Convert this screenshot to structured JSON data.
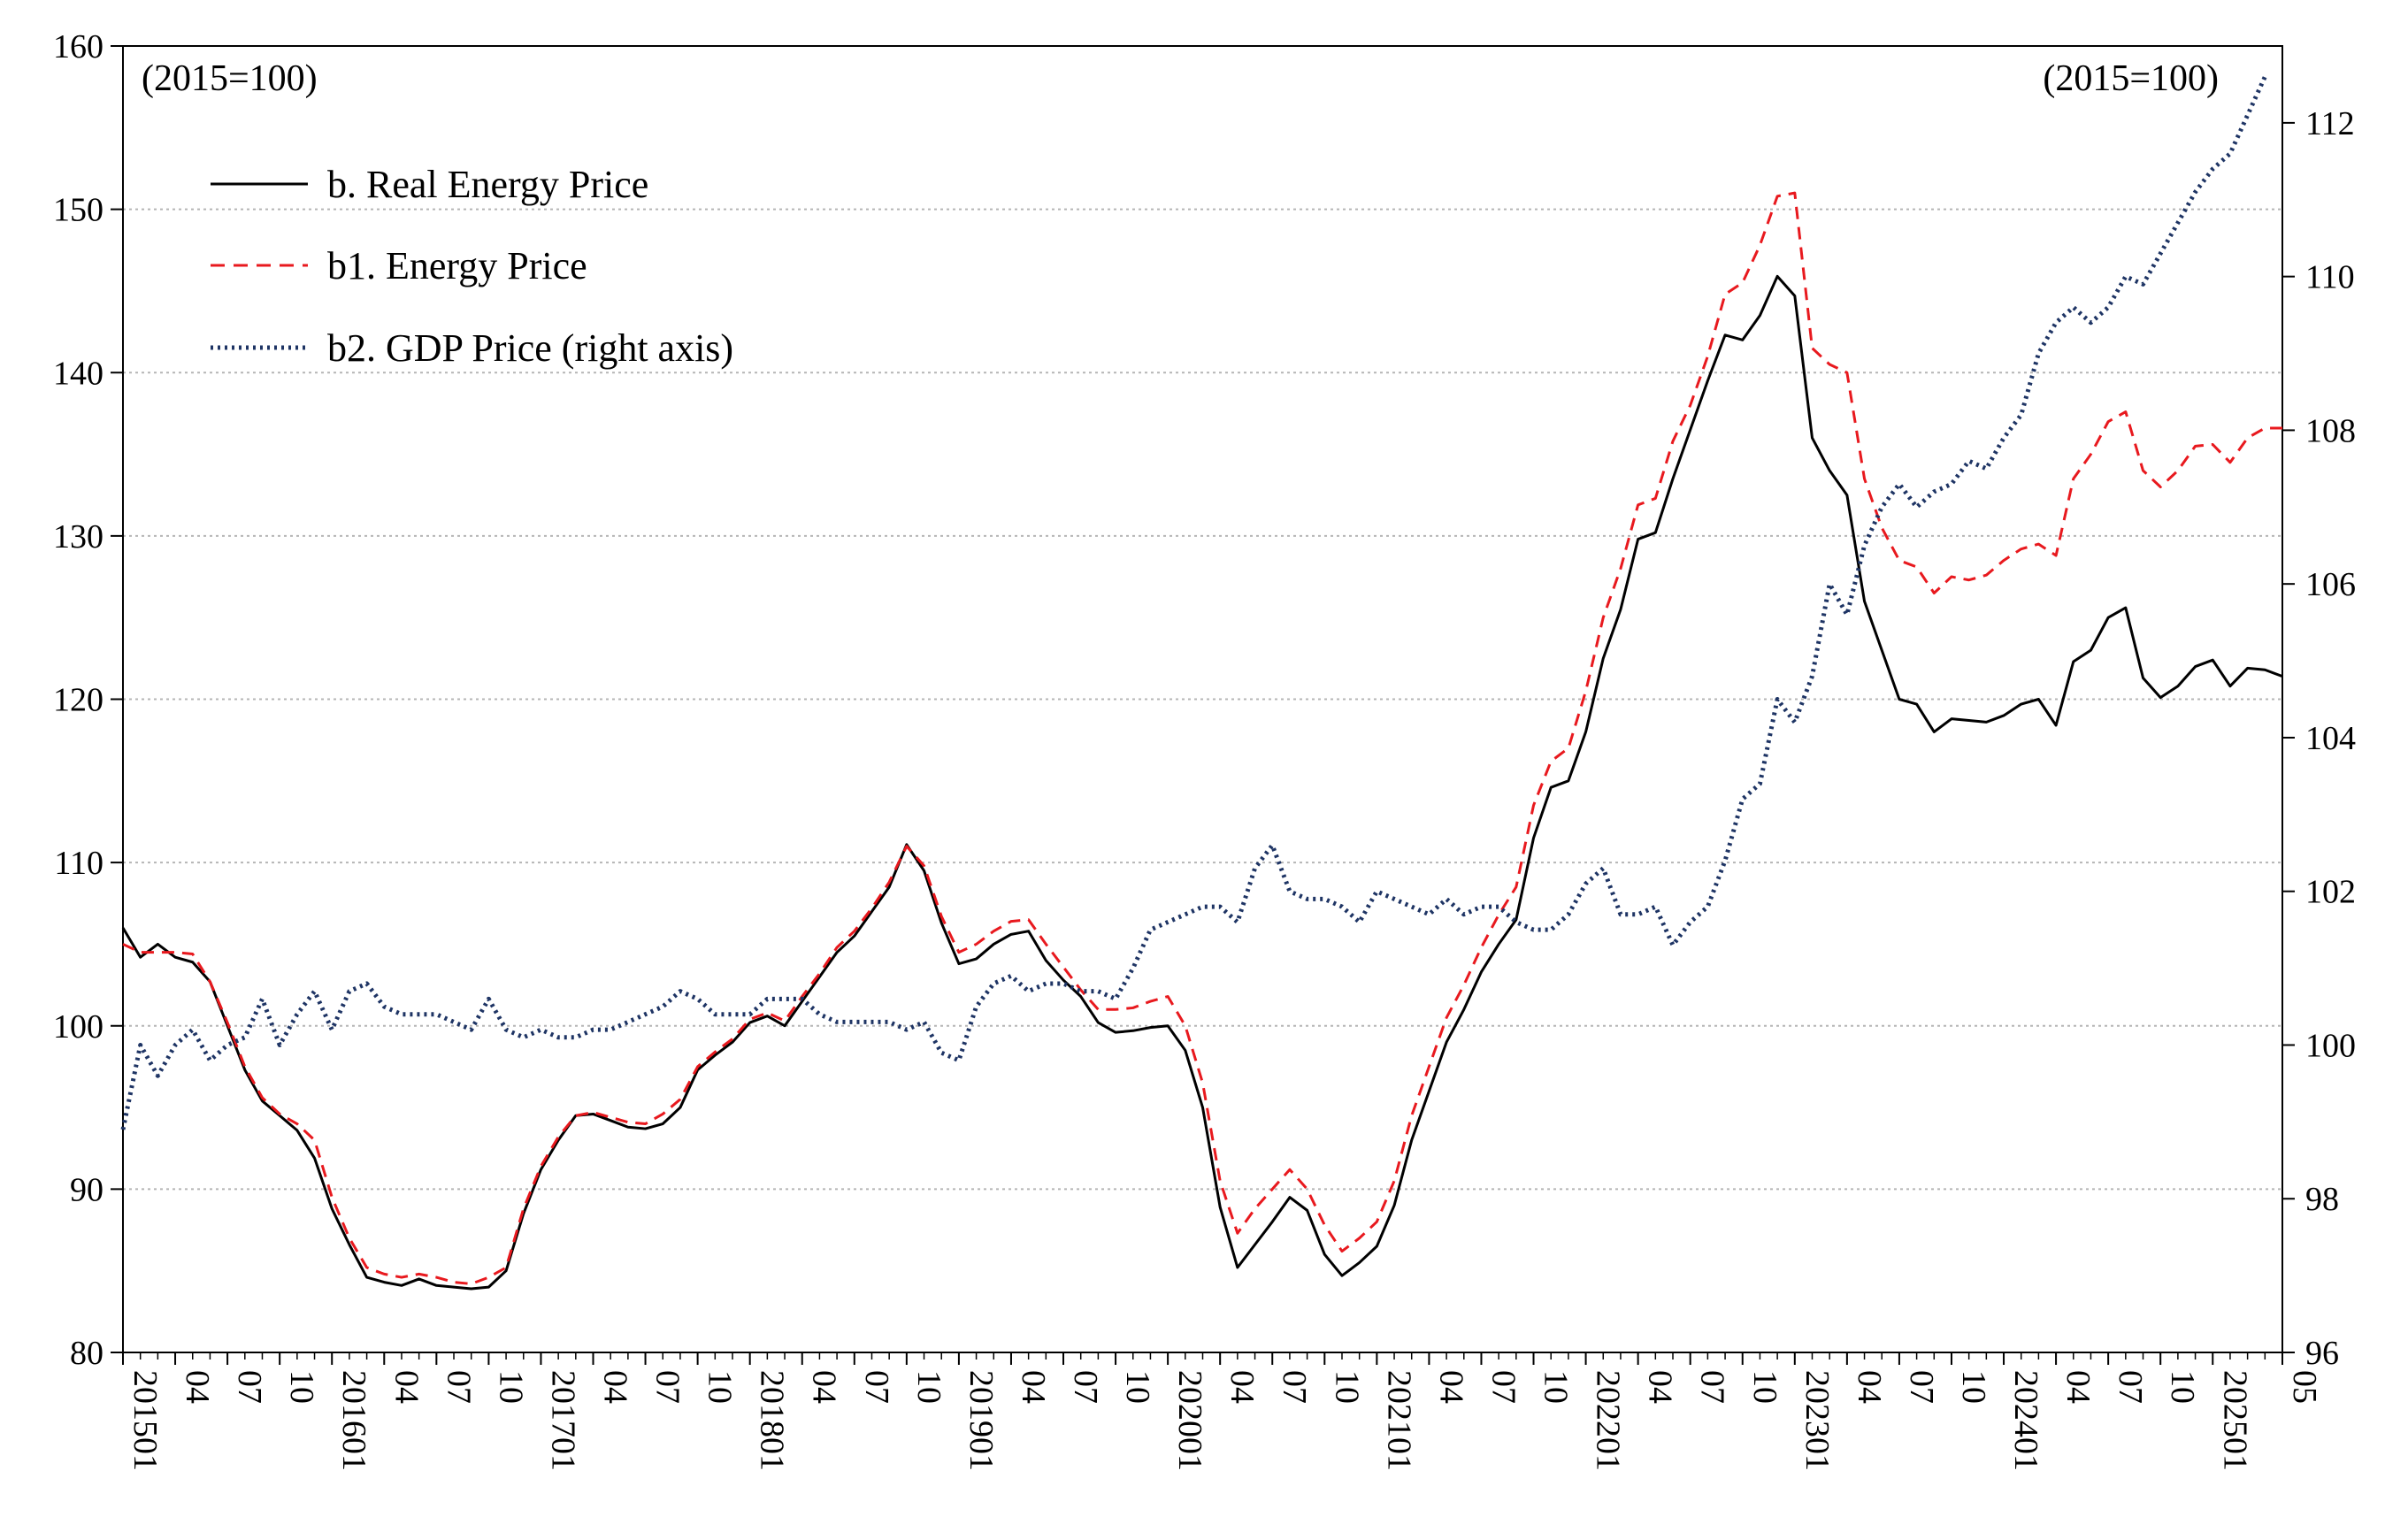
{
  "chart_data": {
    "type": "line",
    "title": "",
    "left_unit_label": "(2015=100)",
    "right_unit_label": "(2015=100)",
    "ylim_left": [
      80,
      160
    ],
    "yticks_left": [
      80,
      90,
      100,
      110,
      120,
      130,
      140,
      150,
      160
    ],
    "ylim_right": [
      96,
      113
    ],
    "yticks_right": [
      96,
      98,
      100,
      102,
      104,
      106,
      108,
      110,
      112
    ],
    "x_start": "2015-01",
    "x_end": "2025-05",
    "x_tick_labels": [
      {
        "i": 0,
        "label": "201501"
      },
      {
        "i": 3,
        "label": "04"
      },
      {
        "i": 6,
        "label": "07"
      },
      {
        "i": 9,
        "label": "10"
      },
      {
        "i": 12,
        "label": "201601"
      },
      {
        "i": 15,
        "label": "04"
      },
      {
        "i": 18,
        "label": "07"
      },
      {
        "i": 21,
        "label": "10"
      },
      {
        "i": 24,
        "label": "201701"
      },
      {
        "i": 27,
        "label": "04"
      },
      {
        "i": 30,
        "label": "07"
      },
      {
        "i": 33,
        "label": "10"
      },
      {
        "i": 36,
        "label": "201801"
      },
      {
        "i": 39,
        "label": "04"
      },
      {
        "i": 42,
        "label": "07"
      },
      {
        "i": 45,
        "label": "10"
      },
      {
        "i": 48,
        "label": "201901"
      },
      {
        "i": 51,
        "label": "04"
      },
      {
        "i": 54,
        "label": "07"
      },
      {
        "i": 57,
        "label": "10"
      },
      {
        "i": 60,
        "label": "202001"
      },
      {
        "i": 63,
        "label": "04"
      },
      {
        "i": 66,
        "label": "07"
      },
      {
        "i": 69,
        "label": "10"
      },
      {
        "i": 72,
        "label": "202101"
      },
      {
        "i": 75,
        "label": "04"
      },
      {
        "i": 78,
        "label": "07"
      },
      {
        "i": 81,
        "label": "10"
      },
      {
        "i": 84,
        "label": "202201"
      },
      {
        "i": 87,
        "label": "04"
      },
      {
        "i": 90,
        "label": "07"
      },
      {
        "i": 93,
        "label": "10"
      },
      {
        "i": 96,
        "label": "202301"
      },
      {
        "i": 99,
        "label": "04"
      },
      {
        "i": 102,
        "label": "07"
      },
      {
        "i": 105,
        "label": "10"
      },
      {
        "i": 108,
        "label": "202401"
      },
      {
        "i": 111,
        "label": "04"
      },
      {
        "i": 114,
        "label": "07"
      },
      {
        "i": 117,
        "label": "10"
      },
      {
        "i": 120,
        "label": "202501"
      },
      {
        "i": 124,
        "label": "05"
      }
    ],
    "grid": true,
    "legend_position": "top-left",
    "series": [
      {
        "name": "b. Real Energy Price",
        "axis": "left",
        "color": "#000000",
        "style": "solid",
        "values": [
          106.0,
          104.2,
          105.0,
          104.2,
          103.9,
          102.7,
          100.0,
          97.3,
          95.4,
          94.5,
          93.6,
          91.9,
          88.8,
          86.6,
          84.6,
          84.3,
          84.1,
          84.5,
          84.1,
          84.0,
          83.9,
          84.0,
          85.0,
          88.5,
          91.2,
          93.0,
          94.5,
          94.6,
          94.2,
          93.8,
          93.7,
          94.0,
          95.0,
          97.3,
          98.2,
          99.0,
          100.2,
          100.6,
          100.0,
          101.5,
          103.0,
          104.5,
          105.5,
          107.0,
          108.5,
          111.1,
          109.5,
          106.3,
          103.8,
          104.1,
          105.0,
          105.6,
          105.8,
          104.0,
          102.8,
          101.8,
          100.2,
          99.6,
          99.7,
          99.9,
          100.0,
          98.5,
          95.0,
          88.9,
          85.2,
          86.6,
          88.0,
          89.5,
          88.7,
          86.0,
          84.7,
          85.5,
          86.5,
          89.0,
          93.0,
          96.0,
          99.0,
          101.0,
          103.3,
          105.0,
          106.5,
          111.5,
          114.6,
          115.0,
          118.0,
          122.5,
          125.5,
          129.8,
          130.2,
          133.5,
          136.5,
          139.5,
          142.3,
          142.0,
          143.5,
          145.9,
          144.7,
          136.0,
          134.0,
          132.5,
          126.0,
          123.0,
          120.0,
          119.7,
          118.0,
          118.8,
          118.7,
          118.6,
          119.0,
          119.7,
          120.0,
          118.4,
          122.3,
          123.0,
          125.0,
          125.6,
          121.3,
          120.1,
          120.8,
          122.0,
          122.4,
          120.8,
          121.9,
          121.8,
          121.4
        ]
      },
      {
        "name": "b1. Energy Price",
        "axis": "left",
        "color": "#e8191e",
        "style": "dashed",
        "values": [
          105.0,
          104.5,
          104.5,
          104.5,
          104.4,
          102.7,
          100.2,
          97.5,
          95.6,
          94.6,
          94.0,
          93.0,
          89.5,
          87.0,
          85.2,
          84.8,
          84.6,
          84.8,
          84.6,
          84.3,
          84.2,
          84.6,
          85.2,
          88.8,
          91.4,
          93.2,
          94.5,
          94.7,
          94.4,
          94.1,
          94.0,
          94.6,
          95.5,
          97.5,
          98.4,
          99.2,
          100.4,
          100.8,
          100.3,
          101.8,
          103.2,
          104.8,
          105.8,
          107.2,
          108.8,
          111.0,
          109.8,
          106.7,
          104.5,
          105.0,
          105.8,
          106.4,
          106.5,
          105.0,
          103.6,
          102.2,
          101.0,
          101.0,
          101.1,
          101.5,
          101.8,
          100.0,
          96.5,
          90.5,
          87.3,
          88.8,
          90.0,
          91.2,
          90.0,
          87.8,
          86.2,
          87.0,
          88.0,
          90.5,
          94.5,
          97.5,
          100.5,
          102.5,
          104.8,
          106.8,
          108.5,
          113.5,
          116.2,
          117.0,
          120.5,
          125.0,
          128.0,
          131.9,
          132.3,
          135.8,
          138.0,
          141.0,
          144.8,
          145.5,
          147.8,
          150.8,
          151.0,
          141.5,
          140.5,
          140.0,
          133.5,
          130.5,
          128.5,
          128.1,
          126.5,
          127.5,
          127.3,
          127.6,
          128.5,
          129.2,
          129.5,
          128.8,
          133.5,
          135.0,
          137.0,
          137.6,
          134.0,
          133.0,
          134.0,
          135.5,
          135.6,
          134.5,
          136.0,
          136.6,
          136.6
        ]
      },
      {
        "name": "b2. GDP Price (right axis)",
        "axis": "right",
        "color": "#1e3464",
        "style": "dotted",
        "values": [
          98.9,
          100.0,
          99.6,
          100.0,
          100.2,
          99.8,
          100.0,
          100.1,
          100.6,
          100.0,
          100.4,
          100.7,
          100.2,
          100.7,
          100.8,
          100.5,
          100.4,
          100.4,
          100.4,
          100.3,
          100.2,
          100.6,
          100.2,
          100.1,
          100.2,
          100.1,
          100.1,
          100.2,
          100.2,
          100.3,
          100.4,
          100.5,
          100.7,
          100.6,
          100.4,
          100.4,
          100.4,
          100.6,
          100.6,
          100.6,
          100.4,
          100.3,
          100.3,
          100.3,
          100.3,
          100.2,
          100.3,
          99.9,
          99.8,
          100.5,
          100.8,
          100.9,
          100.7,
          100.8,
          100.8,
          100.7,
          100.7,
          100.6,
          101.0,
          101.5,
          101.6,
          101.7,
          101.8,
          101.8,
          101.6,
          102.3,
          102.6,
          102.0,
          101.9,
          101.9,
          101.8,
          101.6,
          102.0,
          101.9,
          101.8,
          101.7,
          101.9,
          101.7,
          101.8,
          101.8,
          101.6,
          101.5,
          101.5,
          101.7,
          102.1,
          102.3,
          101.7,
          101.7,
          101.8,
          101.3,
          101.6,
          101.8,
          102.4,
          103.2,
          103.4,
          104.5,
          104.2,
          104.8,
          106.0,
          105.6,
          106.5,
          107.0,
          107.3,
          107.0,
          107.2,
          107.3,
          107.6,
          107.5,
          107.9,
          108.2,
          109.0,
          109.4,
          109.6,
          109.4,
          109.6,
          110.0,
          109.9,
          110.3,
          110.7,
          111.1,
          111.4,
          111.6,
          112.1,
          112.6
        ]
      }
    ]
  }
}
